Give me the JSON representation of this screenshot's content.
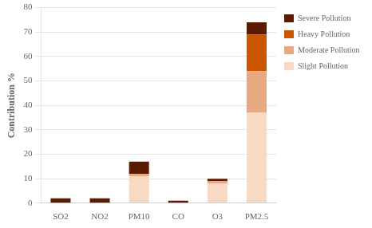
{
  "chart_data": {
    "type": "bar",
    "stacked": true,
    "categories": [
      "SO2",
      "NO2",
      "PM10",
      "CO",
      "O3",
      "PM2.5"
    ],
    "series": [
      {
        "name": "Slight Pollution",
        "color": "#f7d9c4",
        "values": [
          0,
          0,
          11,
          0,
          8,
          37
        ]
      },
      {
        "name": "Moderate Pollution",
        "color": "#e8a882",
        "values": [
          0,
          0,
          1,
          0,
          1,
          17
        ]
      },
      {
        "name": "Heavy Pollution",
        "color": "#cc5500",
        "values": [
          0,
          0,
          0,
          0,
          0,
          15
        ]
      },
      {
        "name": "Severe Pollution",
        "color": "#5c1a00",
        "values": [
          2,
          2,
          5,
          1,
          1,
          5
        ]
      }
    ],
    "ylabel": "Contribution %",
    "ylim": [
      0,
      80
    ],
    "yticks": [
      0,
      10,
      20,
      30,
      40,
      50,
      60,
      70,
      80
    ],
    "grid": true,
    "legend": "right"
  }
}
